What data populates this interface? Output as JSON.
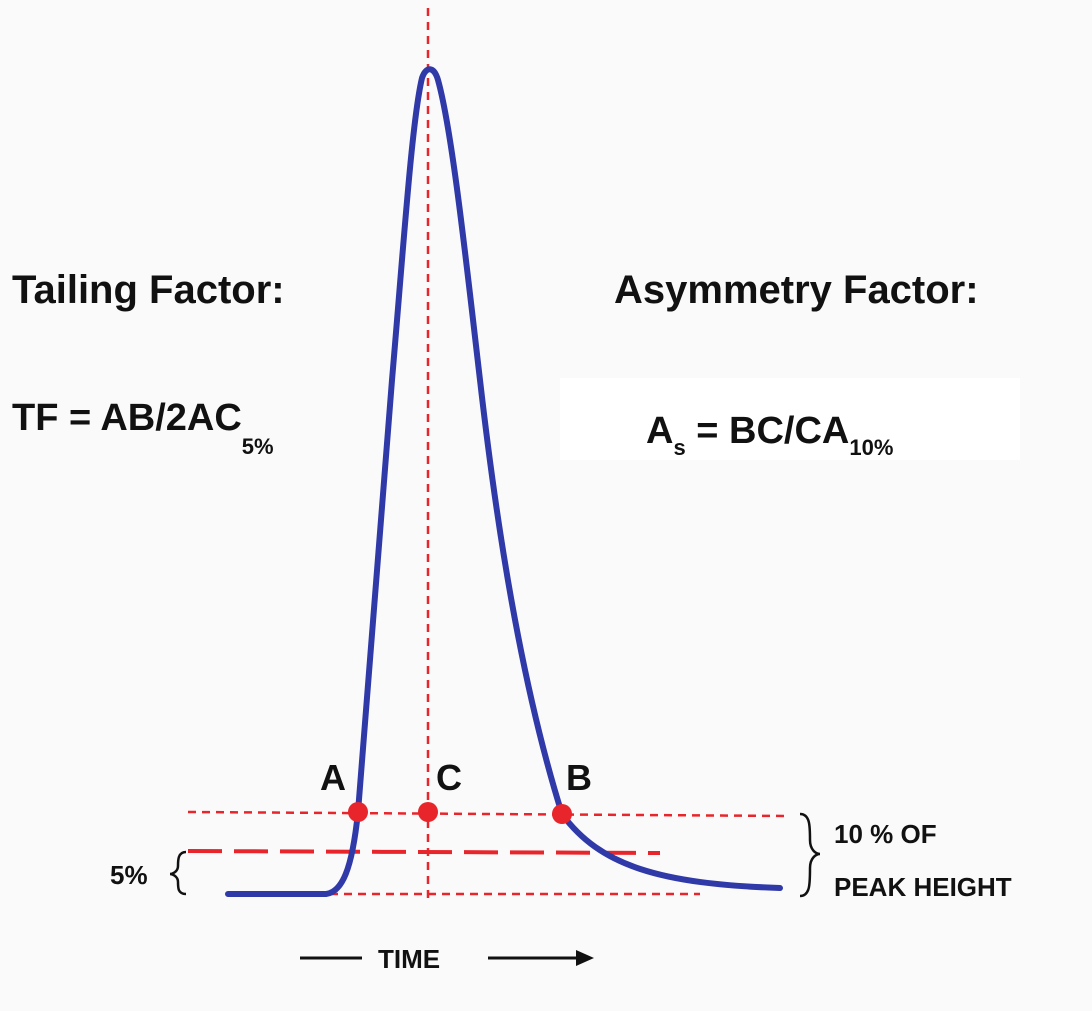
{
  "colors": {
    "peak_curve": "#2f3aa8",
    "guide_lines": "#e8252b",
    "points": "#e8252b",
    "text": "#111111",
    "formula_box": "#ffffff"
  },
  "left_panel": {
    "title": "Tailing Factor:",
    "formula_main": "TF = AB/2AC",
    "formula_sub": "5%"
  },
  "right_panel": {
    "title": "Asymmetry  Factor:",
    "formula_a": "A",
    "formula_a_sub": "s",
    "formula_main": " = BC/CA",
    "formula_sub": "10%"
  },
  "points": {
    "a": "A",
    "b": "B",
    "c": "C"
  },
  "left_bracket_label": "5%",
  "right_bracket_label_line1": "10 % OF",
  "right_bracket_label_line2": "PEAK HEIGHT",
  "time_axis_label": "TIME"
}
